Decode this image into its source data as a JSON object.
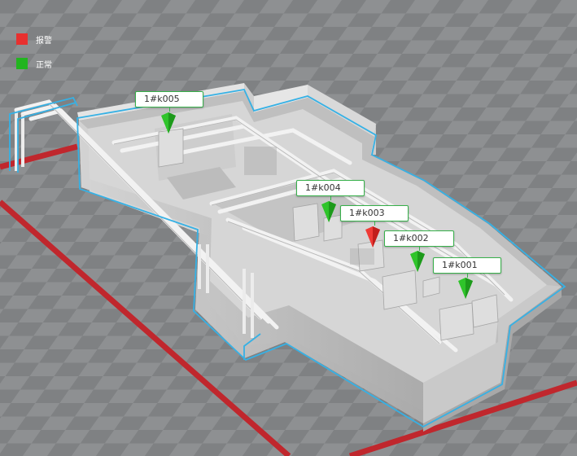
{
  "legend": {
    "alarm": {
      "label": "报警",
      "color": "#e8302f"
    },
    "normal": {
      "label": "正常",
      "color": "#22b51f"
    }
  },
  "devices": [
    {
      "id": "1#k005",
      "status": "normal",
      "icon": "map-pin-icon"
    },
    {
      "id": "1#k004",
      "status": "normal",
      "icon": "map-pin-icon"
    },
    {
      "id": "1#k003",
      "status": "alarm",
      "icon": "map-pin-icon"
    },
    {
      "id": "1#k002",
      "status": "normal",
      "icon": "map-pin-icon"
    },
    {
      "id": "1#k001",
      "status": "normal",
      "icon": "map-pin-icon"
    }
  ],
  "colors": {
    "accent": "#36b1e5",
    "floor_light": "#909294",
    "floor_dark": "#7d7f81",
    "warning_line": "#c0272d",
    "label_border": "#37b04a"
  }
}
